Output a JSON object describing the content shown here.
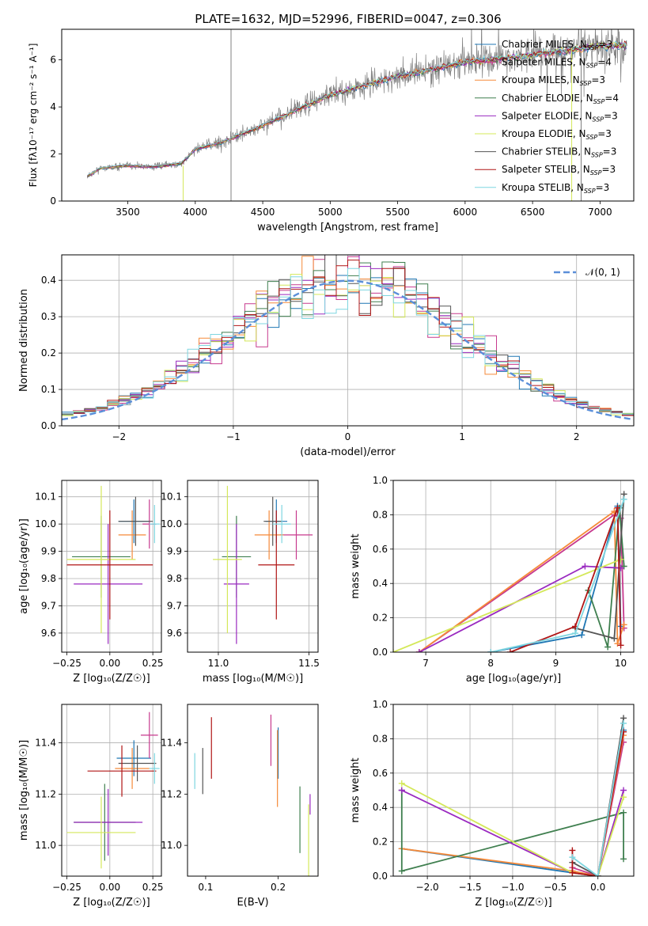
{
  "figure_title": "PLATE=1632, MJD=52996, FIBERID=0047, z=0.306",
  "colors": {
    "chabrier_miles": "#1f77b4",
    "salpeter_miles": "#c73a8e",
    "kroupa_miles": "#f58a3a",
    "chabrier_elodie": "#3f7f4f",
    "salpeter_elodie": "#9a2ac0",
    "kroupa_elodie": "#d4e85a",
    "chabrier_stelib": "#555555",
    "salpeter_stelib": "#b01515",
    "kroupa_stelib": "#7fd6e0",
    "normal_curve": "#5b8fd9",
    "spectrum": "#808080"
  },
  "chart_data": [
    {
      "id": "spectrum",
      "type": "line",
      "title": "PLATE=1632, MJD=52996, FIBERID=0047, z=0.306",
      "xlabel": "wavelength [Angstrom, rest frame]",
      "ylabel": "Flux [fλ10⁻¹⁷ erg cm⁻² s⁻¹ A⁻¹]",
      "xlim": [
        3010,
        7250
      ],
      "ylim": [
        0,
        7.3
      ],
      "xticks": [
        3500,
        4000,
        4500,
        5000,
        5500,
        6000,
        6500,
        7000
      ],
      "yticks": [
        0,
        2,
        4,
        6
      ],
      "grid": false,
      "legend_position": "upper-right",
      "legend": [
        {
          "label": "Chabrier MILES, N",
          "sub": "SSP",
          "suffix": "=3",
          "color_key": "chabrier_miles"
        },
        {
          "label": "Salpeter MILES, N",
          "sub": "SSP",
          "suffix": "=4",
          "color_key": "salpeter_miles"
        },
        {
          "label": "Kroupa MILES, N",
          "sub": "SSP",
          "suffix": "=3",
          "color_key": "kroupa_miles"
        },
        {
          "label": "Chabrier ELODIE, N",
          "sub": "SSP",
          "suffix": "=4",
          "color_key": "chabrier_elodie"
        },
        {
          "label": "Salpeter ELODIE, N",
          "sub": "SSP",
          "suffix": "=3",
          "color_key": "salpeter_elodie"
        },
        {
          "label": "Kroupa ELODIE, N",
          "sub": "SSP",
          "suffix": "=3",
          "color_key": "kroupa_elodie"
        },
        {
          "label": "Chabrier STELIB, N",
          "sub": "SSP",
          "suffix": "=3",
          "color_key": "chabrier_stelib"
        },
        {
          "label": "Salpeter STELIB, N",
          "sub": "SSP",
          "suffix": "=3",
          "color_key": "salpeter_stelib"
        },
        {
          "label": "Kroupa STELIB, N",
          "sub": "SSP",
          "suffix": "=3",
          "color_key": "kroupa_stelib"
        }
      ],
      "continuum": {
        "x": [
          3200,
          3300,
          3500,
          3700,
          3900,
          4000,
          4200,
          4500,
          4800,
          5000,
          5500,
          6000,
          6500,
          7000,
          7200
        ],
        "y": [
          1.05,
          1.4,
          1.5,
          1.45,
          1.6,
          2.2,
          2.5,
          3.2,
          4.0,
          4.5,
          5.3,
          5.9,
          6.2,
          6.6,
          6.6
        ]
      }
    },
    {
      "id": "residuals",
      "type": "line",
      "xlabel": "(data-model)/error",
      "ylabel": "Normed distribution",
      "xlim": [
        -2.5,
        2.5
      ],
      "ylim": [
        0,
        0.47
      ],
      "xticks": [
        -2,
        -1,
        0,
        1,
        2
      ],
      "yticks": [
        0.0,
        0.1,
        0.2,
        0.3,
        0.4
      ],
      "grid": true,
      "legend_position": "upper-right",
      "legend": [
        {
          "label": "𝒩(0, 1)",
          "color_key": "normal_curve"
        }
      ],
      "bin_width": 0.1,
      "bins_start": -2.5
    },
    {
      "id": "age_vs_Z",
      "type": "scatter",
      "xlabel": "Z [log₁₀(Z/Z☉)]",
      "ylabel": "age  [log₁₀(age/yr)]",
      "xlim": [
        -0.28,
        0.3
      ],
      "ylim": [
        9.53,
        10.16
      ],
      "xticks": [
        -0.25,
        0.0,
        0.25
      ],
      "yticks": [
        9.6,
        9.7,
        9.8,
        9.9,
        10.0,
        10.1
      ],
      "grid": true,
      "points": [
        {
          "series": "chabrier_miles",
          "x": 0.14,
          "y": 10.01,
          "xerr": 0.09,
          "yerr": 0.08
        },
        {
          "series": "salpeter_miles",
          "x": 0.23,
          "y": 10.0,
          "xerr": 0.04,
          "yerr": 0.09
        },
        {
          "series": "kroupa_miles",
          "x": 0.13,
          "y": 9.96,
          "xerr": 0.08,
          "yerr": 0.09
        },
        {
          "series": "chabrier_elodie",
          "x": -0.05,
          "y": 9.88,
          "xerr": 0.17,
          "yerr": 0.15
        },
        {
          "series": "salpeter_elodie",
          "x": -0.01,
          "y": 9.78,
          "xerr": 0.2,
          "yerr": 0.22
        },
        {
          "series": "kroupa_elodie",
          "x": -0.05,
          "y": 9.87,
          "xerr": 0.2,
          "yerr": 0.27
        },
        {
          "series": "chabrier_stelib",
          "x": 0.15,
          "y": 10.01,
          "xerr": 0.1,
          "yerr": 0.09
        },
        {
          "series": "salpeter_stelib",
          "x": 0.0,
          "y": 9.85,
          "xerr": 0.25,
          "yerr": 0.2
        },
        {
          "series": "kroupa_stelib",
          "x": 0.26,
          "y": 10.0,
          "xerr": 0.03,
          "yerr": 0.07
        }
      ]
    },
    {
      "id": "age_vs_mass",
      "type": "scatter",
      "xlabel": "mass [log₁₀(M/M☉)]",
      "ylabel": "",
      "xlim": [
        10.83,
        11.55
      ],
      "ylim": [
        9.53,
        10.16
      ],
      "xticks": [
        11.0,
        11.5
      ],
      "yticks": [
        9.6,
        9.7,
        9.8,
        9.9,
        10.0,
        10.1
      ],
      "grid": true,
      "points": [
        {
          "series": "chabrier_miles",
          "x": 11.32,
          "y": 10.01,
          "xerr": 0.06,
          "yerr": 0.08
        },
        {
          "series": "salpeter_miles",
          "x": 11.43,
          "y": 9.96,
          "xerr": 0.09,
          "yerr": 0.09
        },
        {
          "series": "kroupa_miles",
          "x": 11.28,
          "y": 9.96,
          "xerr": 0.08,
          "yerr": 0.09
        },
        {
          "series": "chabrier_elodie",
          "x": 11.1,
          "y": 9.88,
          "xerr": 0.08,
          "yerr": 0.15
        },
        {
          "series": "salpeter_elodie",
          "x": 11.1,
          "y": 9.78,
          "xerr": 0.07,
          "yerr": 0.22
        },
        {
          "series": "kroupa_elodie",
          "x": 11.05,
          "y": 9.87,
          "xerr": 0.08,
          "yerr": 0.27
        },
        {
          "series": "chabrier_stelib",
          "x": 11.3,
          "y": 10.01,
          "xerr": 0.05,
          "yerr": 0.09
        },
        {
          "series": "salpeter_stelib",
          "x": 11.32,
          "y": 9.85,
          "xerr": 0.1,
          "yerr": 0.2
        },
        {
          "series": "kroupa_stelib",
          "x": 11.35,
          "y": 10.0,
          "xerr": 0.05,
          "yerr": 0.07
        }
      ]
    },
    {
      "id": "weight_vs_age",
      "type": "line",
      "xlabel": "age  [log₁₀(age/yr)]",
      "ylabel": "mass weight",
      "xlim": [
        6.5,
        10.2
      ],
      "ylim": [
        0,
        1.0
      ],
      "xticks": [
        7,
        8,
        9,
        10
      ],
      "yticks": [
        0.0,
        0.2,
        0.4,
        0.6,
        0.8,
        1.0
      ],
      "grid": true,
      "series": [
        {
          "color_key": "chabrier_miles",
          "x": [
            8.0,
            9.4,
            9.95,
            10.0
          ],
          "y": [
            0.0,
            0.1,
            0.85,
            0.15
          ]
        },
        {
          "color_key": "salpeter_miles",
          "x": [
            6.9,
            9.9,
            10.0,
            10.05
          ],
          "y": [
            0.0,
            0.8,
            0.78,
            0.14
          ]
        },
        {
          "color_key": "kroupa_miles",
          "x": [
            6.9,
            9.9,
            9.95,
            10.05
          ],
          "y": [
            0.0,
            0.82,
            0.05,
            0.16
          ]
        },
        {
          "color_key": "chabrier_elodie",
          "x": [
            9.5,
            9.8,
            9.98,
            10.05
          ],
          "y": [
            0.36,
            0.03,
            0.84,
            0.5
          ]
        },
        {
          "color_key": "salpeter_elodie",
          "x": [
            6.9,
            9.45,
            10.0
          ],
          "y": [
            0.0,
            0.5,
            0.49
          ]
        },
        {
          "color_key": "kroupa_elodie",
          "x": [
            6.5,
            10.0
          ],
          "y": [
            0.0,
            0.54
          ]
        },
        {
          "color_key": "chabrier_stelib",
          "x": [
            9.3,
            9.9,
            10.05
          ],
          "y": [
            0.14,
            0.08,
            0.92
          ]
        },
        {
          "color_key": "salpeter_stelib",
          "x": [
            8.3,
            9.3,
            9.95,
            10.0
          ],
          "y": [
            0.0,
            0.15,
            0.84,
            0.04
          ]
        },
        {
          "color_key": "kroupa_stelib",
          "x": [
            8.0,
            9.3,
            10.05
          ],
          "y": [
            0.0,
            0.11,
            0.89
          ]
        }
      ]
    },
    {
      "id": "mass_vs_Z",
      "type": "scatter",
      "xlabel": "Z [log₁₀(Z/Z☉)]",
      "ylabel": "mass [log₁₀(M/M☉)]",
      "xlim": [
        -0.28,
        0.3
      ],
      "ylim": [
        10.88,
        11.55
      ],
      "xticks": [
        -0.25,
        0.0,
        0.25
      ],
      "yticks": [
        11.0,
        11.2,
        11.4
      ],
      "grid": true,
      "points": [
        {
          "series": "chabrier_miles",
          "x": 0.14,
          "y": 11.34,
          "xerr": 0.1,
          "yerr": 0.07
        },
        {
          "series": "salpeter_miles",
          "x": 0.23,
          "y": 11.43,
          "xerr": 0.05,
          "yerr": 0.09
        },
        {
          "series": "kroupa_miles",
          "x": 0.13,
          "y": 11.3,
          "xerr": 0.1,
          "yerr": 0.08
        },
        {
          "series": "chabrier_elodie",
          "x": -0.03,
          "y": 11.09,
          "xerr": 0.18,
          "yerr": 0.15
        },
        {
          "series": "salpeter_elodie",
          "x": -0.01,
          "y": 11.09,
          "xerr": 0.2,
          "yerr": 0.13
        },
        {
          "series": "kroupa_elodie",
          "x": -0.05,
          "y": 11.05,
          "xerr": 0.2,
          "yerr": 0.14
        },
        {
          "series": "chabrier_stelib",
          "x": 0.16,
          "y": 11.32,
          "xerr": 0.11,
          "yerr": 0.07
        },
        {
          "series": "salpeter_stelib",
          "x": 0.07,
          "y": 11.29,
          "xerr": 0.2,
          "yerr": 0.1
        },
        {
          "series": "kroupa_stelib",
          "x": 0.26,
          "y": 11.3,
          "xerr": 0.03,
          "yerr": 0.06
        }
      ]
    },
    {
      "id": "mass_vs_ebv",
      "type": "scatter",
      "xlabel": "E(B-V)",
      "ylabel": "",
      "xlim": [
        0.075,
        0.255
      ],
      "ylim": [
        10.88,
        11.55
      ],
      "xticks": [
        0.1,
        0.2
      ],
      "yticks": [
        11.0,
        11.2,
        11.4
      ],
      "grid": false,
      "points": [
        {
          "series": "kroupa_stelib",
          "x": 0.085,
          "y": 11.29,
          "yerr": 0.07
        },
        {
          "series": "chabrier_stelib",
          "x": 0.096,
          "y": 11.29,
          "yerr": 0.09
        },
        {
          "series": "salpeter_stelib",
          "x": 0.108,
          "y": 11.38,
          "yerr": 0.12
        },
        {
          "series": "salpeter_miles",
          "x": 0.19,
          "y": 11.41,
          "yerr": 0.1
        },
        {
          "series": "chabrier_miles",
          "x": 0.2,
          "y": 11.36,
          "yerr": 0.1
        },
        {
          "series": "kroupa_miles",
          "x": 0.199,
          "y": 11.3,
          "yerr": 0.15
        },
        {
          "series": "chabrier_elodie",
          "x": 0.23,
          "y": 11.1,
          "yerr": 0.13
        },
        {
          "series": "salpeter_elodie",
          "x": 0.244,
          "y": 11.16,
          "yerr": 0.04
        },
        {
          "series": "kroupa_elodie",
          "x": 0.242,
          "y": 11.01,
          "yerr": 0.15
        }
      ]
    },
    {
      "id": "weight_vs_Z",
      "type": "line",
      "xlabel": "Z [log₁₀(Z/Z☉)]",
      "ylabel": "mass weight",
      "xlim": [
        -2.4,
        0.42
      ],
      "ylim": [
        0,
        1.0
      ],
      "xticks": [
        -2.0,
        -1.5,
        -1.0,
        -0.5,
        0.0
      ],
      "yticks": [
        0.0,
        0.2,
        0.4,
        0.6,
        0.8,
        1.0
      ],
      "grid": true,
      "series": [
        {
          "color_key": "chabrier_miles",
          "x": [
            -2.3,
            -0.3,
            0.0,
            0.3
          ],
          "y": [
            0.16,
            0.02,
            0.0,
            0.85
          ]
        },
        {
          "color_key": "salpeter_miles",
          "x": [
            -0.3,
            0.0,
            0.3
          ],
          "y": [
            0.05,
            0.0,
            0.78
          ]
        },
        {
          "color_key": "kroupa_miles",
          "x": [
            -2.3,
            -0.3,
            0.0,
            0.3
          ],
          "y": [
            0.16,
            0.03,
            0.0,
            0.82
          ]
        },
        {
          "color_key": "chabrier_elodie",
          "x": [
            -2.3,
            -2.3,
            0.3,
            0.3
          ],
          "y": [
            0.5,
            0.03,
            0.37,
            0.1
          ]
        },
        {
          "color_key": "salpeter_elodie",
          "x": [
            -2.3,
            -0.3,
            0.0,
            0.3
          ],
          "y": [
            0.5,
            0.02,
            0.0,
            0.5
          ]
        },
        {
          "color_key": "kroupa_elodie",
          "x": [
            -2.3,
            -0.3,
            0.0,
            0.3
          ],
          "y": [
            0.54,
            0.02,
            0.0,
            0.46
          ]
        },
        {
          "color_key": "chabrier_stelib",
          "x": [
            -0.3,
            0.0,
            0.3
          ],
          "y": [
            0.08,
            0.0,
            0.92
          ]
        },
        {
          "color_key": "salpeter_stelib",
          "x": [
            -0.3,
            -0.3,
            0.0,
            0.3
          ],
          "y": [
            0.15,
            0.02,
            0.0,
            0.84
          ]
        },
        {
          "color_key": "kroupa_stelib",
          "x": [
            -0.3,
            0.0,
            0.3
          ],
          "y": [
            0.11,
            0.0,
            0.89
          ]
        }
      ]
    }
  ]
}
